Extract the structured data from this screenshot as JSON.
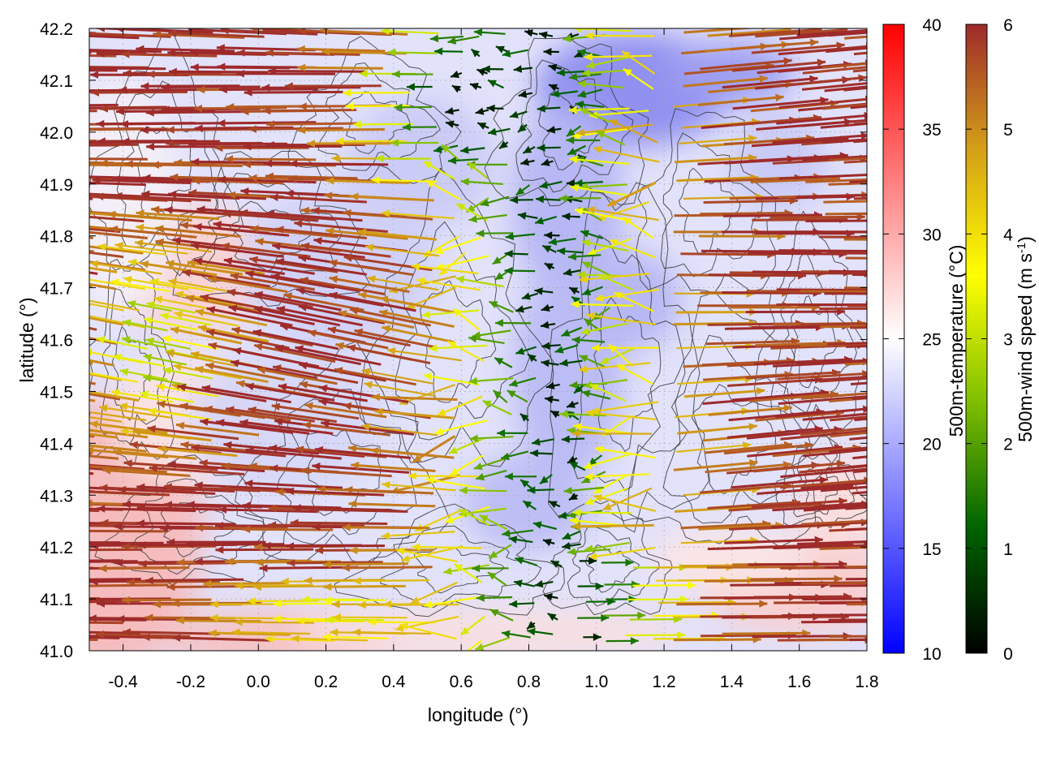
{
  "chart_data": {
    "type": "heatmap",
    "title": "",
    "xlabel": "longitude (°)",
    "ylabel": "latitude (°)",
    "xlim": [
      -0.5,
      1.8
    ],
    "ylim": [
      41.0,
      42.2
    ],
    "x_ticks": [
      -0.4,
      -0.2,
      0.0,
      0.2,
      0.4,
      0.6,
      0.8,
      1.0,
      1.2,
      1.4,
      1.6,
      1.8
    ],
    "x_tick_labels": [
      "-0.4",
      "-0.2",
      "0.0",
      "0.2",
      "0.4",
      "0.6",
      "0.8",
      "1.0",
      "1.2",
      "1.4",
      "1.6",
      "1.8"
    ],
    "y_ticks": [
      41.0,
      41.1,
      41.2,
      41.3,
      41.4,
      41.5,
      41.6,
      41.7,
      41.8,
      41.9,
      42.0,
      42.1,
      42.2
    ],
    "y_tick_labels": [
      "41.0",
      "41.1",
      "41.2",
      "41.3",
      "41.4",
      "41.5",
      "41.6",
      "41.7",
      "41.8",
      "41.9",
      "42.0",
      "42.1",
      "42.2"
    ],
    "grid": true,
    "colorbars": [
      {
        "label_main": "500m-temperature (°C)",
        "label_sup": "",
        "label_end": "",
        "range": [
          10,
          40
        ],
        "ticks": [
          10,
          15,
          20,
          25,
          30,
          35,
          40
        ],
        "tick_labels": [
          "10",
          "15",
          "20",
          "25",
          "30",
          "35",
          "40"
        ],
        "colors": [
          "#0000ff",
          "#ffffff",
          "#ff0000"
        ]
      },
      {
        "label_main": "500m-wind speed (m s",
        "label_sup": "-1",
        "label_end": ")",
        "range": [
          0,
          6
        ],
        "ticks": [
          0,
          1,
          2,
          3,
          4,
          5,
          6
        ],
        "tick_labels": [
          "0",
          "1",
          "2",
          "3",
          "4",
          "5",
          "6"
        ],
        "colors": [
          "#000000",
          "#006400",
          "#7fbf00",
          "#ffff00",
          "#d4a017",
          "#9e2a2b"
        ]
      }
    ]
  }
}
